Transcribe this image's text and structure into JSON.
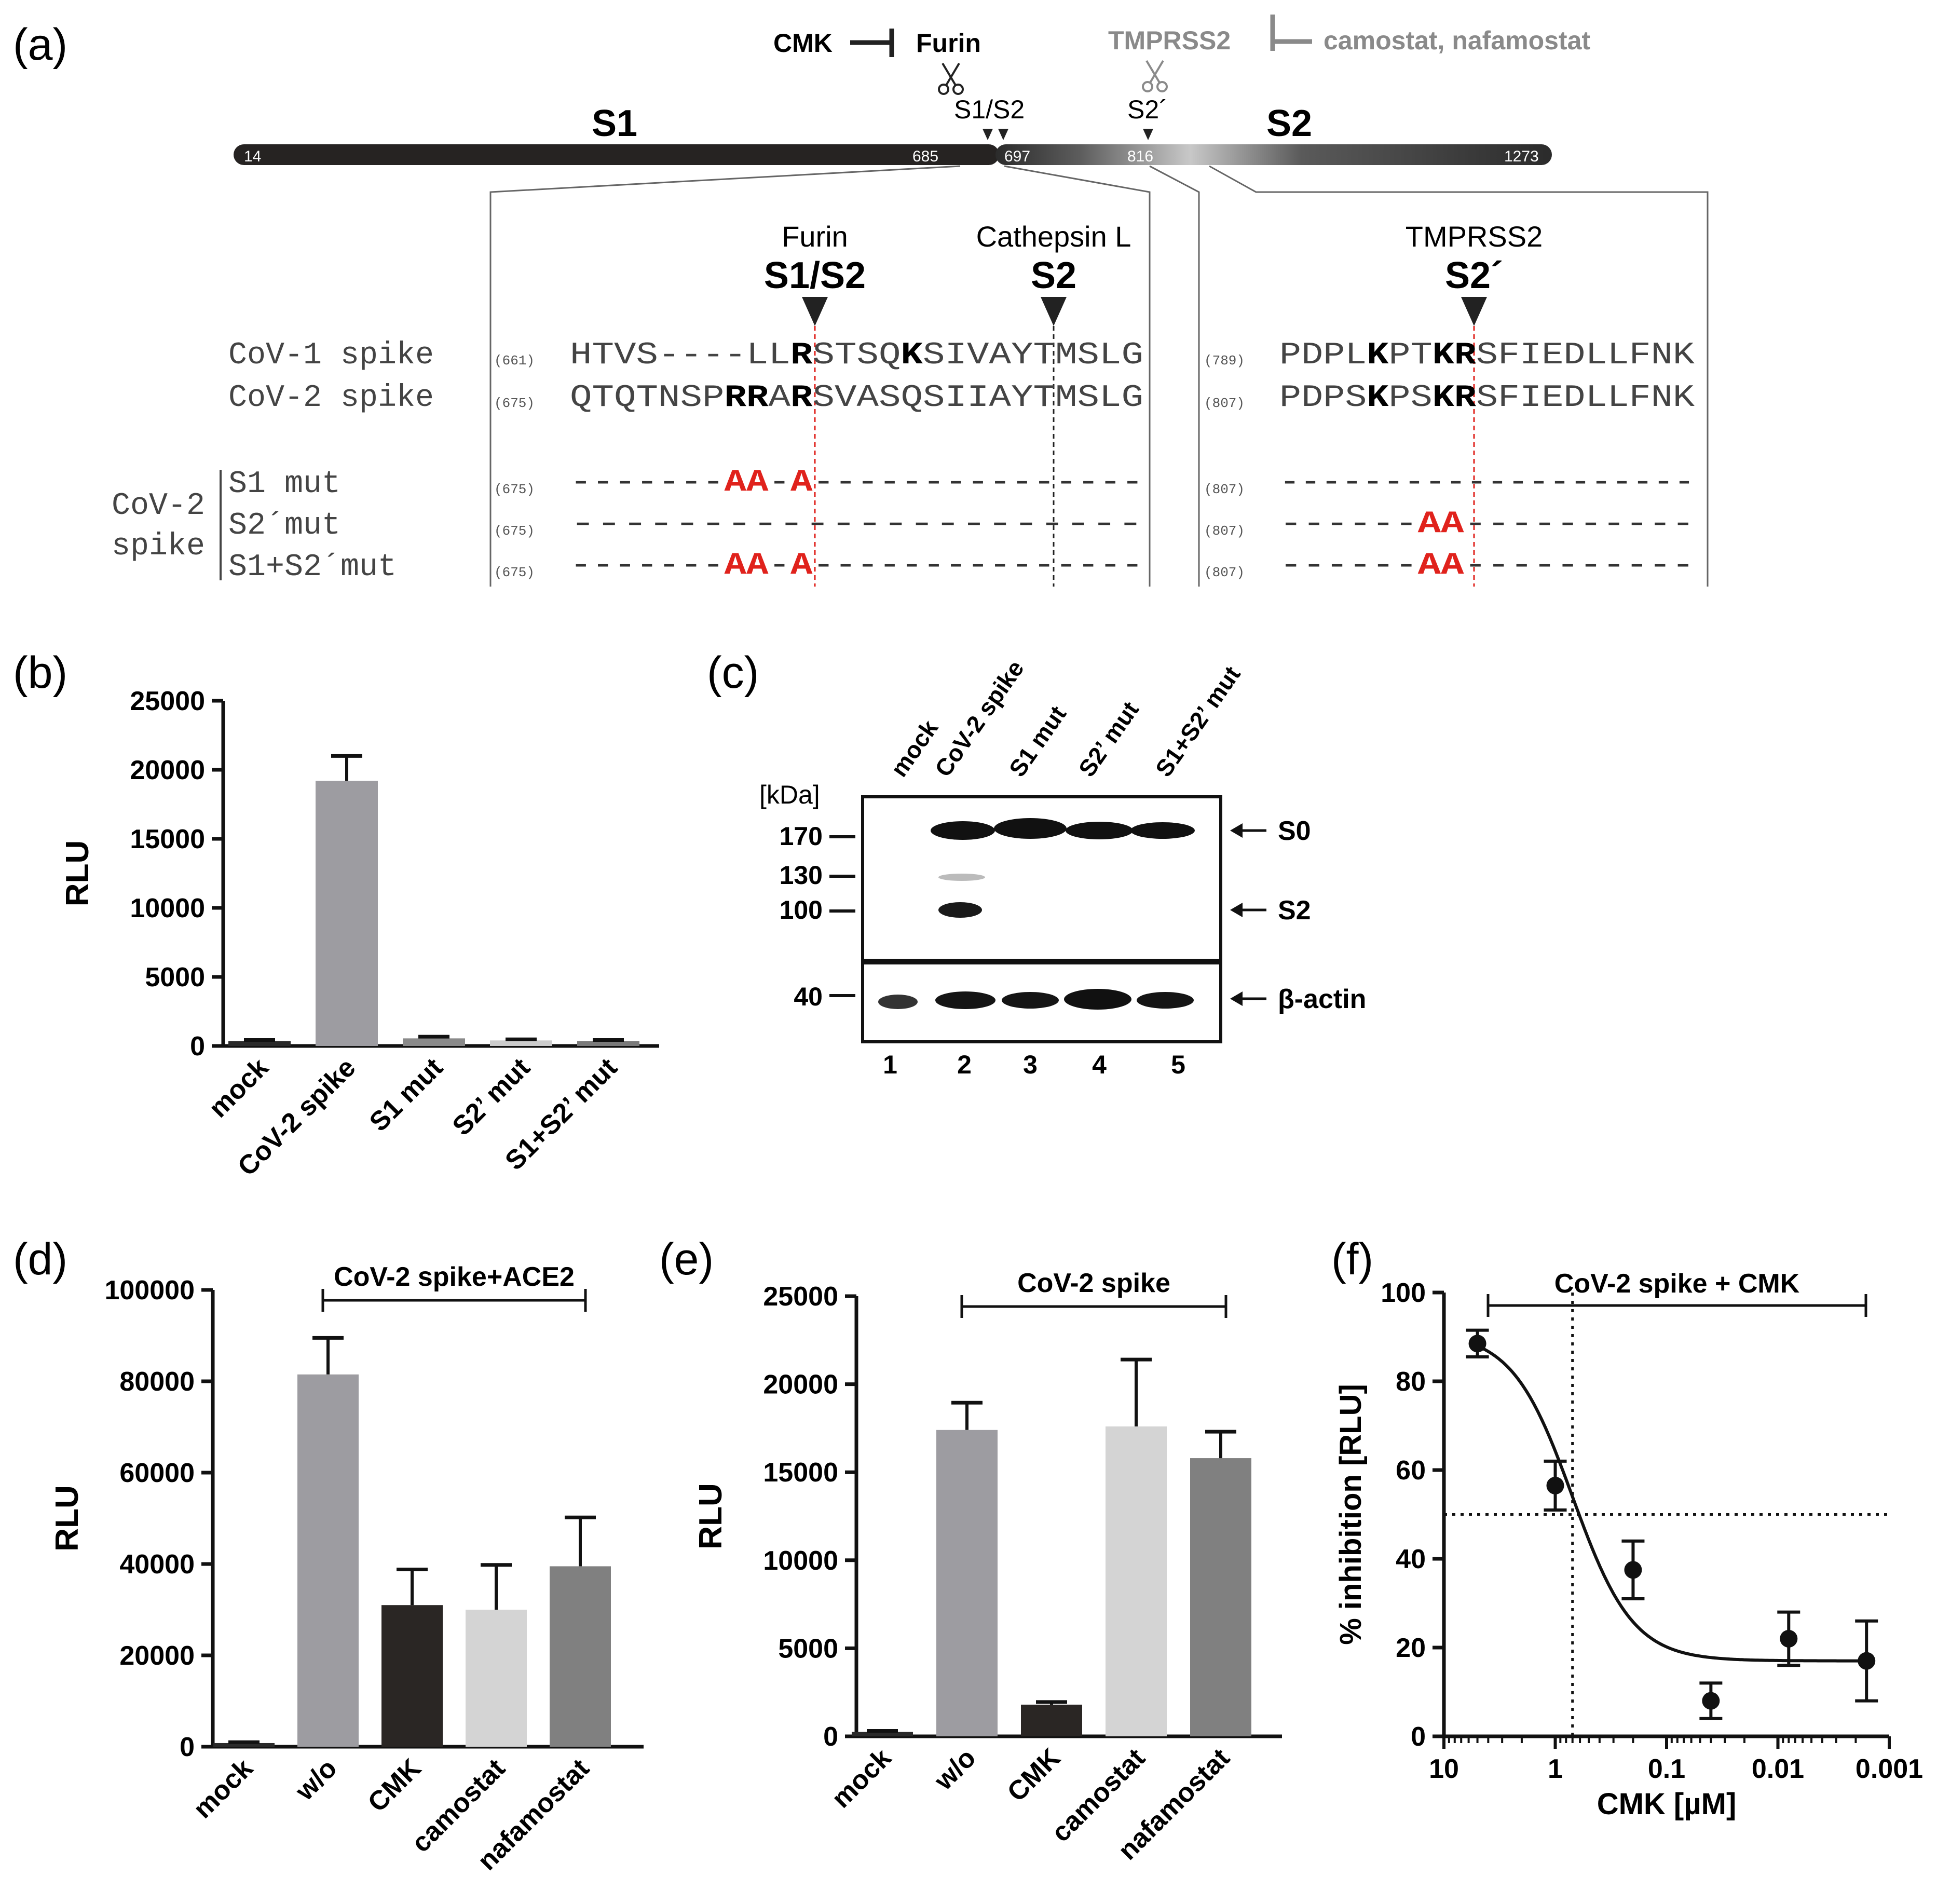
{
  "panel_labels": {
    "a": "(a)",
    "b": "(b)",
    "c": "(c)",
    "d": "(d)",
    "e": "(e)",
    "f": "(f)"
  },
  "panel_a": {
    "cmk": "CMK",
    "furin": "Furin",
    "tmprss2": "TMPRSS2",
    "camostat_nafamostat": "camostat, nafamostat",
    "s1s2_site": "S1/S2",
    "s2prime_site": "S2´",
    "s1_label": "S1",
    "s2_label": "S2",
    "pos_14": "14",
    "pos_685": "685",
    "pos_697": "697",
    "pos_816": "816",
    "pos_1273": "1273",
    "furin_header": "Furin",
    "furin_site": "S1/S2",
    "cathepsin_header": "Cathepsin L",
    "cathepsin_site": "S2",
    "tmprss2_header": "TMPRSS2",
    "tmprss2_site": "S2´",
    "cov1_label": "CoV-1 spike",
    "cov2_label": "CoV-2 spike",
    "cov1_pos1": "(661)",
    "cov2_pos1": "(675)",
    "cov1_pos2": "(789)",
    "cov2_pos2": "(807)",
    "cov1_seq1": [
      "HTVS----LL",
      "R",
      "STSQ",
      "K",
      "SIVAYTMSLG"
    ],
    "cov2_seq1": [
      "QTQTNSP",
      "RR",
      "A",
      "R",
      "SVASQSIIAYTMSLG"
    ],
    "cov1_seq2": [
      "PDPL",
      "K",
      "PT",
      "KR",
      "SFIEDLLFNK"
    ],
    "cov2_seq2": [
      "PDPS",
      "K",
      "PS",
      "KR",
      "SFIEDLLFNK"
    ],
    "group_label_1": "CoV-2",
    "group_label_2": "spike",
    "mut_labels": [
      "S1 mut",
      "S2´mut",
      "S1+S2´mut"
    ],
    "mut_pos1": "(675)",
    "mut_pos2": "(807)",
    "s1_mut_seq": [
      "-------",
      "AA",
      "-",
      "A",
      "---------------"
    ],
    "s2_mut_seq": [
      "------",
      "AA",
      "----------"
    ],
    "dash_full_1": "----------------------",
    "dash_full_2": "--------------------"
  },
  "panel_c": {
    "lanes": [
      "mock",
      "CoV-2 spike",
      "S1 mut",
      "S2’ mut",
      "S1+S2’ mut"
    ],
    "kda_label": "[kDa]",
    "markers": [
      "170",
      "130",
      "100"
    ],
    "actin_marker": "40",
    "band_s0": "S0",
    "band_s2": "S2",
    "band_actin": "β-actin",
    "lane_numbers": [
      "1",
      "2",
      "3",
      "4",
      "5"
    ]
  },
  "chart_data": [
    {
      "panel": "b",
      "type": "bar",
      "categories": [
        "mock",
        "CoV-2 spike",
        "S1 mut",
        "S2’ mut",
        "S1+S2’ mut"
      ],
      "values": [
        350,
        19200,
        550,
        400,
        350
      ],
      "errors": [
        80,
        1800,
        120,
        80,
        80
      ],
      "colors": [
        "#2a2a2a",
        "#9d9ca1",
        "#8a8a8a",
        "#cccccc",
        "#7a7a7a"
      ],
      "ylabel": "RLU",
      "ylim": [
        0,
        25000
      ],
      "yticks": [
        "0",
        "5000",
        "10000",
        "15000",
        "20000",
        "25000"
      ]
    },
    {
      "panel": "d",
      "type": "bar",
      "bracket_label": "CoV-2 spike+ACE2",
      "categories": [
        "mock",
        "w/o",
        "CMK",
        "camostat",
        "nafamostat"
      ],
      "values": [
        800,
        81500,
        31000,
        30000,
        39500
      ],
      "errors": [
        200,
        8000,
        7800,
        9800,
        10700
      ],
      "colors": [
        "#2a2a2a",
        "#9d9ca1",
        "#2a2624",
        "#d4d4d4",
        "#808080"
      ],
      "ylabel": "RLU",
      "ylim": [
        0,
        100000
      ],
      "yticks": [
        "0",
        "20000",
        "40000",
        "60000",
        "80000",
        "100000"
      ]
    },
    {
      "panel": "e",
      "type": "bar",
      "bracket_label": "CoV-2 spike",
      "categories": [
        "mock",
        "w/o",
        "CMK",
        "camostat",
        "nafamostat"
      ],
      "values": [
        250,
        17400,
        1800,
        17600,
        15800
      ],
      "errors": [
        60,
        1550,
        150,
        3800,
        1500
      ],
      "colors": [
        "#2a2a2a",
        "#9d9ca1",
        "#2a2624",
        "#d4d4d4",
        "#808080"
      ],
      "ylabel": "RLU",
      "ylim": [
        0,
        25000
      ],
      "yticks": [
        "0",
        "5000",
        "10000",
        "15000",
        "20000",
        "25000"
      ]
    },
    {
      "panel": "f",
      "type": "scatter",
      "bracket_label": "CoV-2 spike + CMK",
      "x": [
        5,
        1,
        0.2,
        0.04,
        0.008,
        0.0016
      ],
      "y": [
        88.5,
        56.5,
        37.5,
        8,
        22,
        17
      ],
      "errors": [
        3,
        5.5,
        6.5,
        4,
        6,
        9
      ],
      "fit_top": 91,
      "fit_bottom": 17,
      "fit_ic50": 0.7,
      "fit_hill": 1.6,
      "ic50_line_x": 0.7,
      "half_line_y": 50,
      "xlabel": "CMK [µM]",
      "ylabel": "% inhibition [RLU]",
      "ylim": [
        0,
        100
      ],
      "yticks": [
        "0",
        "20",
        "40",
        "60",
        "80",
        "100"
      ],
      "xticks": [
        "10",
        "1",
        "0.1",
        "0.01",
        "0.001"
      ],
      "xscale": "log-reversed"
    }
  ]
}
